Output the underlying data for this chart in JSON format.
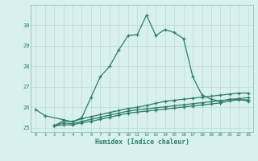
{
  "xlabel": "Humidex (Indice chaleur)",
  "x": [
    0,
    1,
    2,
    3,
    4,
    5,
    6,
    7,
    8,
    9,
    10,
    11,
    12,
    13,
    14,
    15,
    16,
    17,
    18,
    19,
    20,
    21,
    22,
    23
  ],
  "line1": [
    25.9,
    25.6,
    null,
    25.4,
    25.3,
    25.5,
    26.5,
    27.5,
    28.0,
    28.8,
    29.5,
    29.55,
    30.5,
    29.5,
    29.8,
    29.65,
    29.35,
    27.5,
    26.6,
    26.4,
    26.3,
    26.4,
    26.4,
    26.3
  ],
  "line2": [
    null,
    null,
    25.1,
    25.35,
    25.3,
    25.45,
    25.55,
    25.65,
    25.75,
    25.85,
    25.95,
    26.0,
    26.1,
    26.2,
    26.3,
    26.35,
    26.4,
    26.45,
    26.5,
    26.55,
    26.6,
    26.65,
    26.7,
    26.7
  ],
  "line3": [
    null,
    null,
    25.1,
    25.25,
    25.2,
    25.32,
    25.42,
    25.52,
    25.62,
    25.72,
    25.82,
    25.88,
    25.93,
    25.98,
    26.03,
    26.08,
    26.13,
    26.18,
    26.23,
    26.28,
    26.33,
    26.38,
    26.43,
    26.48
  ],
  "line4": [
    null,
    null,
    25.1,
    25.15,
    25.15,
    25.25,
    25.32,
    25.42,
    25.52,
    25.62,
    25.72,
    25.77,
    25.82,
    25.87,
    25.92,
    25.97,
    26.02,
    26.07,
    26.12,
    26.17,
    26.22,
    26.32,
    26.37,
    26.37
  ],
  "line_color": "#2e7d6e",
  "bg_color": "#d8f0ee",
  "grid_color": "#b8dcd8",
  "tick_color": "#2e7d6e",
  "ylim": [
    24.8,
    31.0
  ],
  "yticks": [
    25,
    26,
    27,
    28,
    29,
    30
  ],
  "xlim": [
    -0.5,
    23.5
  ]
}
